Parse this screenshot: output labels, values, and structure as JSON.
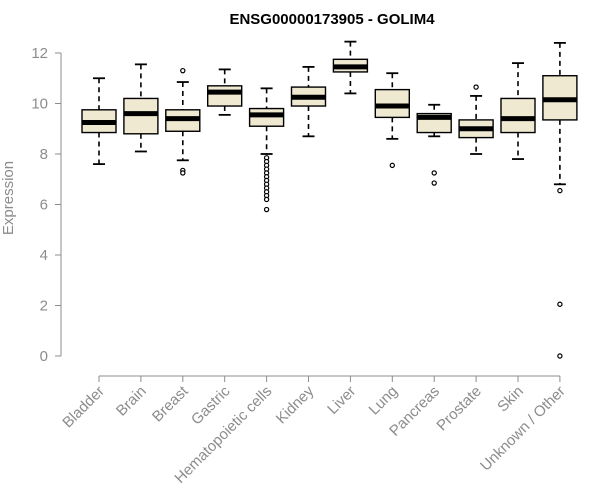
{
  "chart_data": {
    "type": "boxplot",
    "title": "ENSG00000173905 - GOLIM4",
    "ylabel": "Expression",
    "ylim": [
      0,
      12.5
    ],
    "yticks": [
      0,
      2,
      4,
      6,
      8,
      10,
      12
    ],
    "colors": {
      "box_fill": "#efe9d1",
      "box_stroke": "#000000",
      "median": "#000000",
      "axis": "#8c8c8c",
      "text": "#8c8c8c"
    },
    "categories": [
      "Bladder",
      "Brain",
      "Breast",
      "Gastric",
      "Hematopoietic cells",
      "Kidney",
      "Liver",
      "Lung",
      "Pancreas",
      "Prostate",
      "Skin",
      "Unknown / Other"
    ],
    "boxes": [
      {
        "name": "Bladder",
        "whisker_low": 7.6,
        "q1": 8.85,
        "median": 9.25,
        "q3": 9.75,
        "whisker_high": 11.0,
        "outliers": []
      },
      {
        "name": "Brain",
        "whisker_low": 8.1,
        "q1": 8.8,
        "median": 9.6,
        "q3": 10.2,
        "whisker_high": 11.55,
        "outliers": []
      },
      {
        "name": "Breast",
        "whisker_low": 7.75,
        "q1": 8.9,
        "median": 9.4,
        "q3": 9.75,
        "whisker_high": 10.85,
        "outliers": [
          11.3,
          7.35,
          7.25
        ]
      },
      {
        "name": "Gastric",
        "whisker_low": 9.55,
        "q1": 9.9,
        "median": 10.45,
        "q3": 10.7,
        "whisker_high": 11.35,
        "outliers": []
      },
      {
        "name": "Hematopoietic cells",
        "whisker_low": 8.0,
        "q1": 9.1,
        "median": 9.55,
        "q3": 9.8,
        "whisker_high": 10.6,
        "outliers": [
          7.85,
          7.7,
          7.55,
          7.4,
          7.25,
          7.1,
          6.95,
          6.8,
          6.65,
          6.5,
          6.35,
          6.2,
          5.8
        ]
      },
      {
        "name": "Kidney",
        "whisker_low": 8.7,
        "q1": 9.9,
        "median": 10.25,
        "q3": 10.65,
        "whisker_high": 11.45,
        "outliers": []
      },
      {
        "name": "Liver",
        "whisker_low": 10.4,
        "q1": 11.25,
        "median": 11.45,
        "q3": 11.75,
        "whisker_high": 12.45,
        "outliers": []
      },
      {
        "name": "Lung",
        "whisker_low": 8.6,
        "q1": 9.45,
        "median": 9.9,
        "q3": 10.55,
        "whisker_high": 11.2,
        "outliers": [
          7.55
        ]
      },
      {
        "name": "Pancreas",
        "whisker_low": 8.7,
        "q1": 8.85,
        "median": 9.45,
        "q3": 9.6,
        "whisker_high": 9.95,
        "outliers": [
          7.25,
          6.85
        ]
      },
      {
        "name": "Prostate",
        "whisker_low": 8.0,
        "q1": 8.65,
        "median": 9.0,
        "q3": 9.35,
        "whisker_high": 10.3,
        "outliers": [
          10.65
        ]
      },
      {
        "name": "Skin",
        "whisker_low": 7.8,
        "q1": 8.85,
        "median": 9.4,
        "q3": 10.2,
        "whisker_high": 11.6,
        "outliers": []
      },
      {
        "name": "Unknown / Other",
        "whisker_low": 6.8,
        "q1": 9.35,
        "median": 10.15,
        "q3": 11.1,
        "whisker_high": 12.4,
        "outliers": [
          6.55,
          2.05,
          0.0
        ]
      }
    ]
  }
}
